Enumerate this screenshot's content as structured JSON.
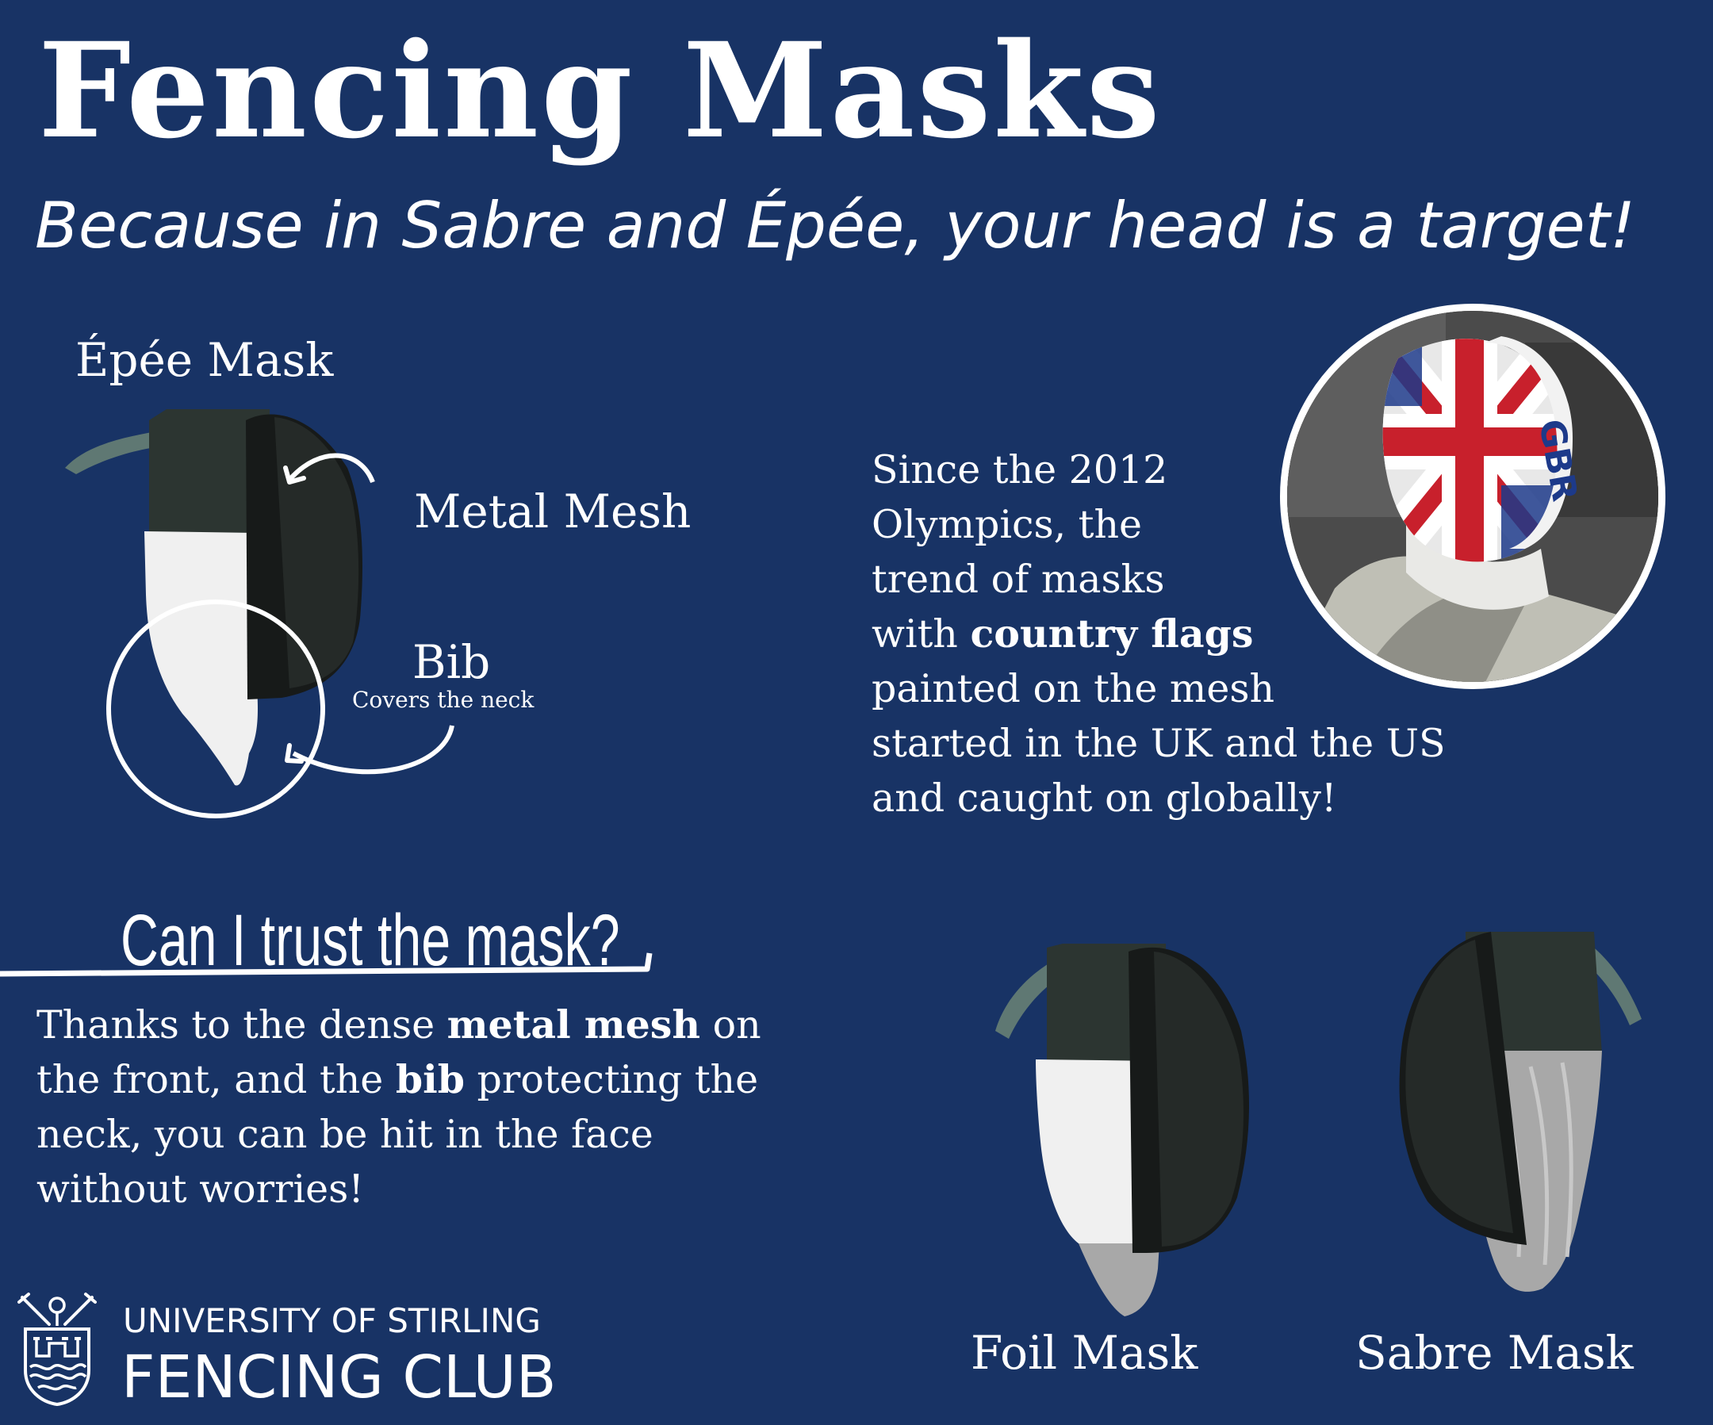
{
  "header": {
    "title": "Fencing Masks",
    "subtitle": "Because in Sabre and Épée, your head is a target!"
  },
  "epee_diagram": {
    "label": "Épée Mask",
    "mesh_label": "Metal Mesh",
    "bib_label": "Bib",
    "bib_note": "Covers the neck"
  },
  "flags_section": {
    "lines": [
      {
        "text": "Since the 2012"
      },
      {
        "text": "Olympics, the"
      },
      {
        "text": "trend of masks"
      },
      {
        "pre": "with ",
        "bold": "country flags",
        "post": ""
      },
      {
        "text": "painted on the mesh"
      },
      {
        "text": "started in the UK and the US"
      },
      {
        "text": "and caught on globally!"
      }
    ],
    "photo_mask_text": "GBR"
  },
  "trust_section": {
    "question": "Can I trust the mask?",
    "lines": [
      {
        "pre": "Thanks to the dense ",
        "bold": "metal mesh",
        "post": " on"
      },
      {
        "pre": "the front, and the ",
        "bold": "bib",
        "post": " protecting the"
      },
      {
        "text": "neck, you can be hit in the face"
      },
      {
        "text": "without worries!"
      }
    ]
  },
  "masks": {
    "foil_label": "Foil Mask",
    "sabre_label": "Sabre Mask"
  },
  "club": {
    "line1": "UNIVERSITY OF STIRLING",
    "line2": "FENCING CLUB"
  },
  "colors": {
    "background": "#183365",
    "text": "#ffffff",
    "mask_shell": "#2c3531",
    "mask_rim": "#171a19",
    "strap": "#5f7873",
    "bib_white": "#f0f0f0",
    "bib_grey": "#a8a8a8",
    "flag_red": "#c8202c",
    "flag_blue": "#1d3a8a"
  }
}
